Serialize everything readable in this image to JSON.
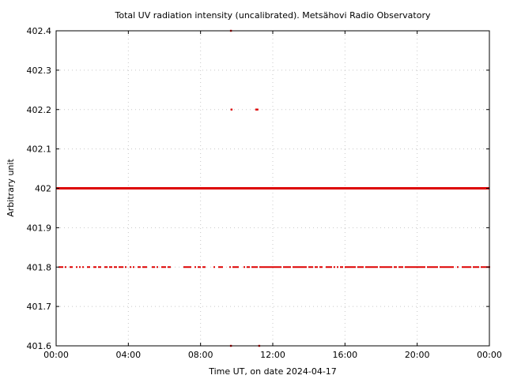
{
  "chart_data": {
    "type": "scatter",
    "title": "Total UV radiation intensity (uncalibrated). Metsähovi Radio Observatory",
    "xlabel": "Time UT, on date 2024-04-17",
    "ylabel": "Arbitrary unit",
    "xlim": [
      "00:00",
      "24:00"
    ],
    "ylim": [
      401.6,
      402.4
    ],
    "x_ticks": [
      "00:00",
      "04:00",
      "08:00",
      "12:00",
      "16:00",
      "20:00",
      "00:00"
    ],
    "y_ticks": [
      "401.6",
      "401.7",
      "401.8",
      "401.9",
      "402",
      "402.1",
      "402.2",
      "402.3",
      "402.4"
    ],
    "grid": true,
    "marker_color": "#dd0000",
    "series": [
      {
        "points": [
          [
            "09:41",
            402.4
          ],
          [
            "09:43",
            402.2
          ],
          [
            "11:05",
            402.2
          ],
          [
            "11:09",
            402.2
          ],
          [
            "09:41",
            401.6
          ],
          [
            "11:15",
            401.6
          ]
        ],
        "continuous_bands": [
          {
            "value": 402.0,
            "from": "00:00",
            "to": "24:00"
          }
        ],
        "sparse_bands": [
          {
            "value": 401.8,
            "from": "00:00",
            "to": "24:00"
          }
        ]
      }
    ]
  }
}
